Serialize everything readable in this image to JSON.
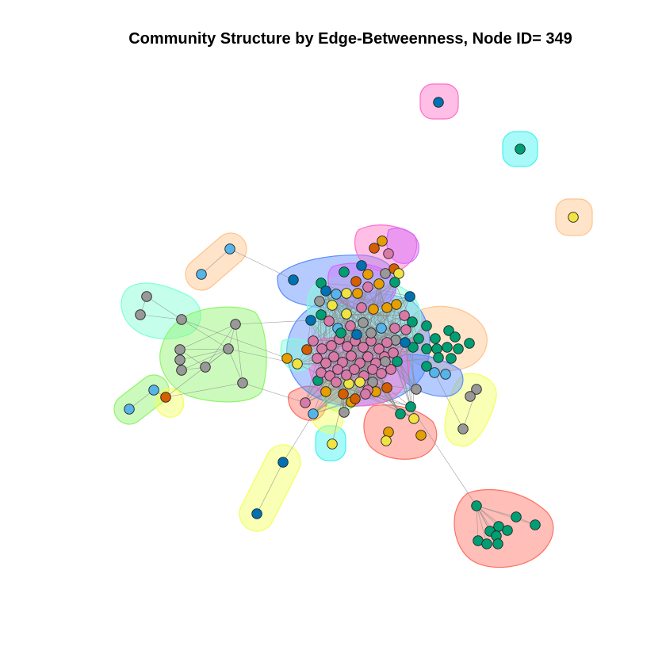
{
  "title": "Community Structure by Edge-Betweenness, Node ID= 349",
  "colors": {
    "background": "#ffffff",
    "title": "#000000",
    "edge": "#8c8c8c",
    "node_stroke": "#222222",
    "node_palette": [
      "#d87aa8",
      "#009e73",
      "#e69f00",
      "#f0e442",
      "#56b4e9",
      "#0072b2",
      "#d55e00",
      "#999999"
    ],
    "community_fills": [
      "#ff6ec7",
      "#3ef5ef",
      "#ffc38a",
      "#8ef56a",
      "#7fffd4",
      "#f2ff5a",
      "#ff6f61",
      "#5a8cff",
      "#d26bff"
    ]
  }
}
